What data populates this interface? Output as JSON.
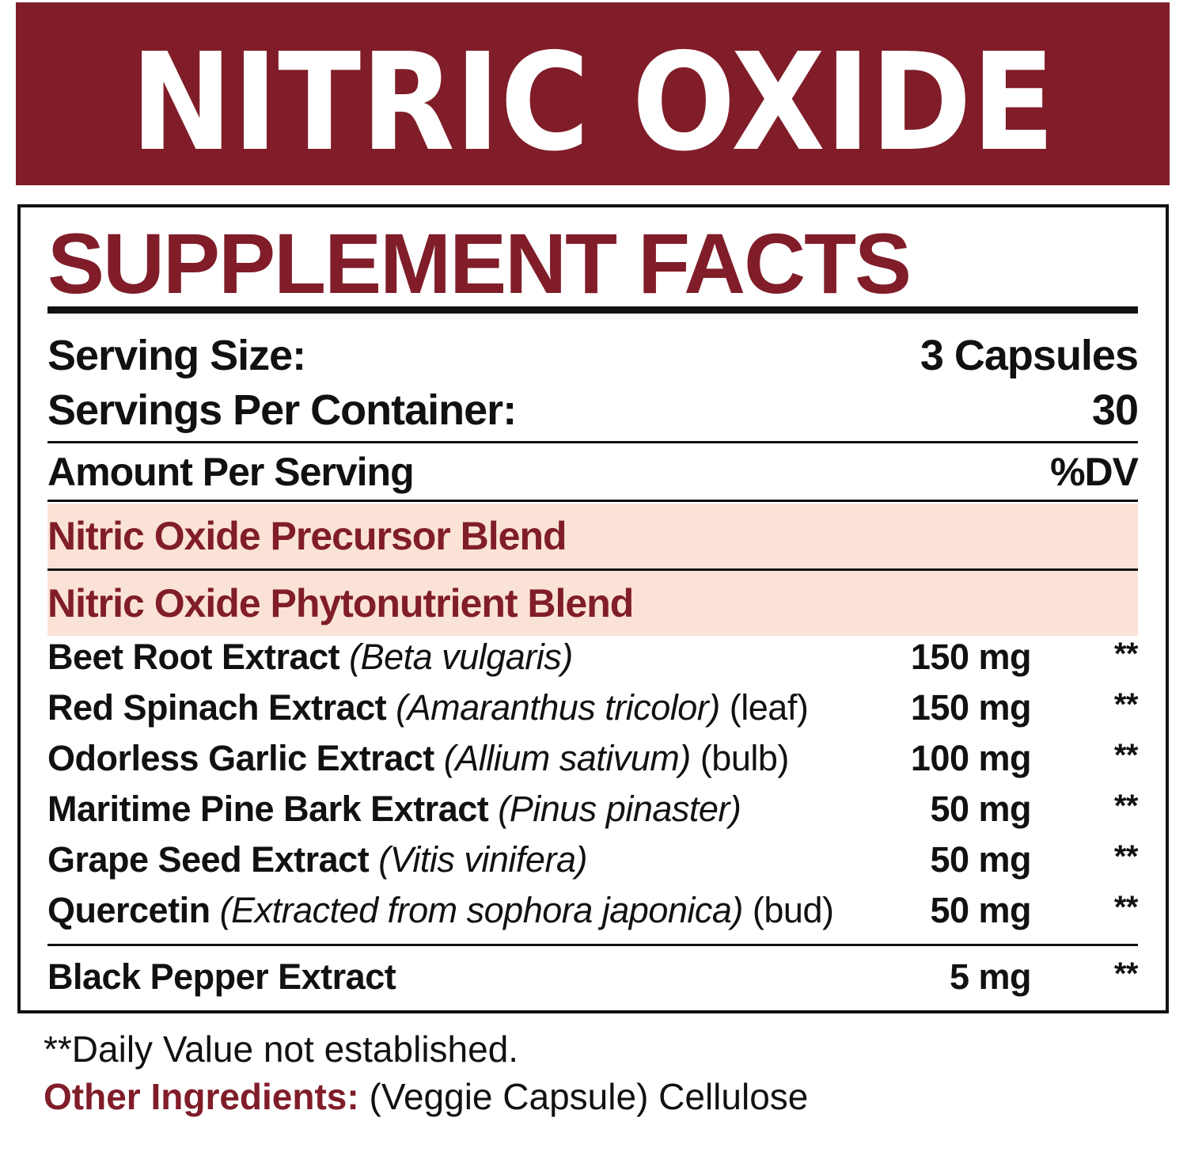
{
  "banner": {
    "title": "NITRIC OXIDE"
  },
  "colors": {
    "brand": "#801d29",
    "blend_bg": "#fbe2d6"
  },
  "panel": {
    "title": "SUPPLEMENT FACTS",
    "serving_size_label": "Serving Size:",
    "serving_size_value": "3 Capsules",
    "servings_label": "Servings Per Container:",
    "servings_value": "30",
    "amount_label": "Amount Per Serving",
    "dv_label": "%DV",
    "blends": [
      "Nitric Oxide Precursor Blend",
      "Nitric Oxide Phytonutrient Blend"
    ],
    "ingredients": [
      {
        "name": "Beet Root Extract",
        "latin": "(Beta vulgaris)",
        "part": "",
        "amount": "150 mg",
        "dv": "**"
      },
      {
        "name": "Red Spinach Extract",
        "latin": "(Amaranthus tricolor)",
        "part": "(leaf)",
        "amount": "150 mg",
        "dv": "**"
      },
      {
        "name": "Odorless Garlic Extract",
        "latin": "(Allium sativum)",
        "part": "(bulb)",
        "amount": "100 mg",
        "dv": "**"
      },
      {
        "name": "Maritime Pine Bark Extract",
        "latin": "(Pinus pinaster)",
        "part": "",
        "amount": "50 mg",
        "dv": "**"
      },
      {
        "name": "Grape Seed Extract",
        "latin": "(Vitis vinifera)",
        "part": "",
        "amount": "50 mg",
        "dv": "**"
      },
      {
        "name": "Quercetin",
        "latin": "(Extracted from sophora japonica)",
        "part": "(bud)",
        "amount": "50 mg",
        "dv": "**"
      }
    ],
    "extra": {
      "name": "Black Pepper Extract",
      "amount": "5 mg",
      "dv": "**"
    }
  },
  "footnote": "**Daily Value not established.",
  "other_ingredients": {
    "label": "Other Ingredients:",
    "value": "(Veggie Capsule) Cellulose"
  }
}
